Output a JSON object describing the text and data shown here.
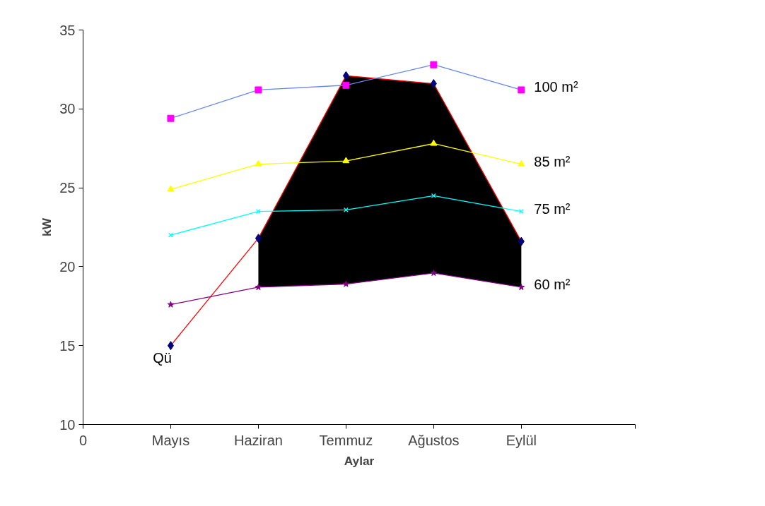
{
  "chart_data": {
    "type": "line",
    "xlabel": "Aylar",
    "ylabel": "kW",
    "categories": [
      "Mayıs",
      "Haziran",
      "Temmuz",
      "Ağustos",
      "Eylül"
    ],
    "annotations": [
      "0"
    ],
    "ylim": [
      10,
      35
    ],
    "yticks": [
      10,
      15,
      20,
      25,
      30,
      35
    ],
    "grid": false,
    "series": [
      {
        "name": "Qü",
        "type": "line",
        "color": "#ff0000",
        "colors": [
          "#000080",
          "#000080",
          "#000080",
          "#000080",
          "#000080"
        ],
        "marker": "diamond",
        "values": [
          15.0,
          21.8,
          32.1,
          31.6,
          21.6
        ],
        "lower": [
          null,
          18.7,
          18.9,
          19.6,
          18.7
        ],
        "upper": [
          null,
          21.8,
          32.1,
          31.6,
          21.6
        ]
      },
      {
        "name": "60 m²",
        "color": "#800080",
        "colors": [
          "#800080",
          "#800080",
          "#800080",
          "#800080",
          "#800080"
        ],
        "marker": "star",
        "values": [
          17.6,
          18.7,
          18.9,
          19.6,
          18.7
        ]
      },
      {
        "name": "75 m²",
        "color": "#00ffff",
        "colors": [
          "#00ffff",
          "#00ffff",
          "#00ffff",
          "#00ffff",
          "#00ffff"
        ],
        "marker": "cross",
        "values": [
          22.0,
          23.5,
          23.6,
          24.5,
          23.5
        ]
      },
      {
        "name": "85 m²",
        "color": "#ffff00",
        "colors": [
          "#ffff00",
          "#ffff00",
          "#ffff00",
          "#ffff00",
          "#ffff00"
        ],
        "marker": "triangle",
        "values": [
          24.9,
          26.5,
          26.7,
          27.8,
          26.5
        ]
      },
      {
        "name": "100 m²",
        "color": "#6688ee",
        "colors": [
          "#ff00ff",
          "#ff00ff",
          "#ff00ff",
          "#ff00ff",
          "#ff00ff"
        ],
        "marker": "square",
        "values": [
          29.4,
          31.2,
          31.5,
          32.8,
          31.2
        ]
      }
    ]
  }
}
